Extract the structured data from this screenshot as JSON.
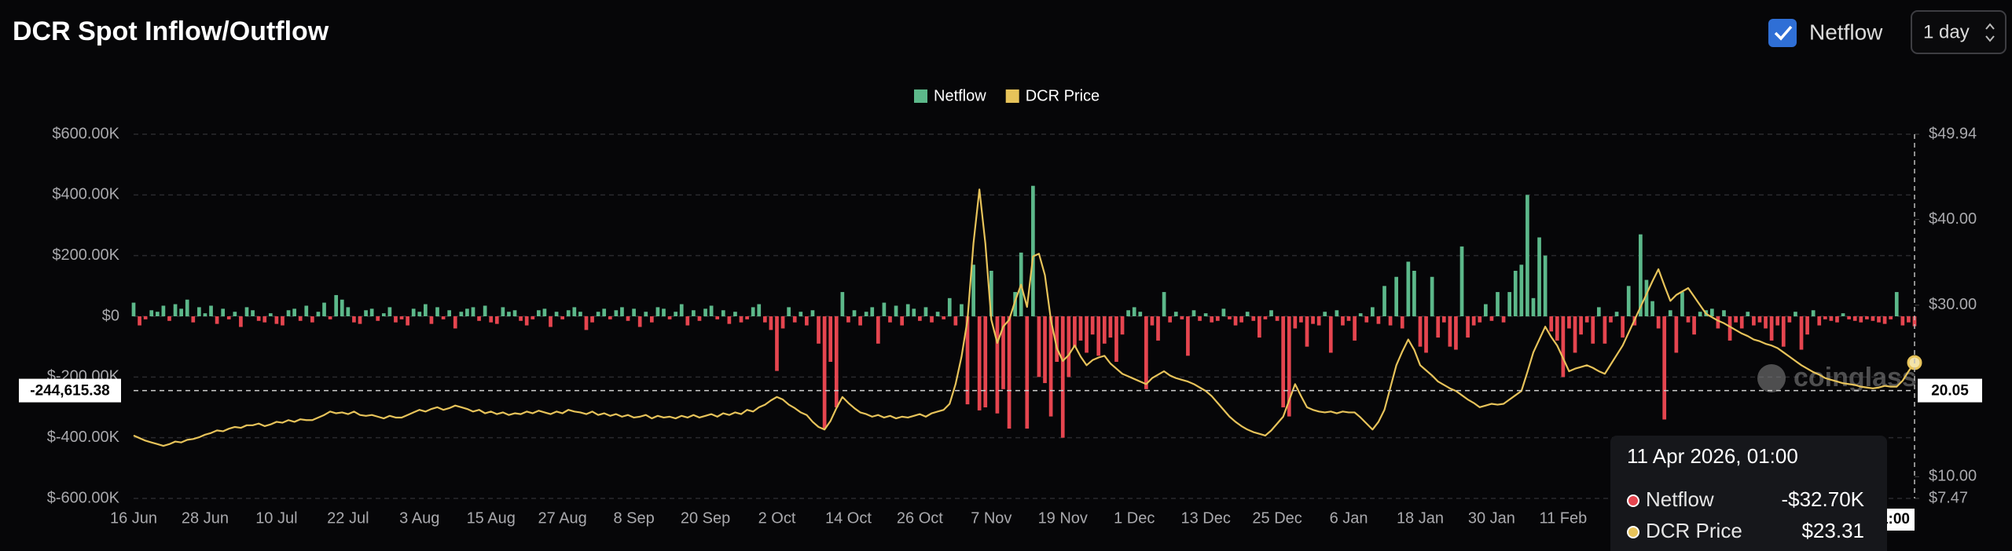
{
  "controls": {
    "checkbox_label": "Netflow",
    "interval": "1 day"
  },
  "chart_data": {
    "type": "bar",
    "title": "DCR Spot Inflow/Outflow",
    "watermark": "coinglass",
    "categories": [
      "16 Jun",
      null,
      null,
      null,
      null,
      null,
      null,
      null,
      null,
      null,
      null,
      null,
      "28 Jun",
      null,
      null,
      null,
      null,
      null,
      null,
      null,
      null,
      null,
      null,
      null,
      "10 Jul",
      null,
      null,
      null,
      null,
      null,
      null,
      null,
      null,
      null,
      null,
      null,
      "22 Jul",
      null,
      null,
      null,
      null,
      null,
      null,
      null,
      null,
      null,
      null,
      null,
      "3 Aug",
      null,
      null,
      null,
      null,
      null,
      null,
      null,
      null,
      null,
      null,
      null,
      "15 Aug",
      null,
      null,
      null,
      null,
      null,
      null,
      null,
      null,
      null,
      null,
      null,
      "27 Aug",
      null,
      null,
      null,
      null,
      null,
      null,
      null,
      null,
      null,
      null,
      null,
      "8 Sep",
      null,
      null,
      null,
      null,
      null,
      null,
      null,
      null,
      null,
      null,
      null,
      "20 Sep",
      null,
      null,
      null,
      null,
      null,
      null,
      null,
      null,
      null,
      null,
      null,
      "2 Oct",
      null,
      null,
      null,
      null,
      null,
      null,
      null,
      null,
      null,
      null,
      null,
      "14 Oct",
      null,
      null,
      null,
      null,
      null,
      null,
      null,
      null,
      null,
      null,
      null,
      "26 Oct",
      null,
      null,
      null,
      null,
      null,
      null,
      null,
      null,
      null,
      null,
      null,
      "7 Nov",
      null,
      null,
      null,
      null,
      null,
      null,
      null,
      null,
      null,
      null,
      null,
      "19 Nov",
      null,
      null,
      null,
      null,
      null,
      null,
      null,
      null,
      null,
      null,
      null,
      "1 Dec",
      null,
      null,
      null,
      null,
      null,
      null,
      null,
      null,
      null,
      null,
      null,
      "13 Dec",
      null,
      null,
      null,
      null,
      null,
      null,
      null,
      null,
      null,
      null,
      null,
      "25 Dec",
      null,
      null,
      null,
      null,
      null,
      null,
      null,
      null,
      null,
      null,
      null,
      "6 Jan",
      null,
      null,
      null,
      null,
      null,
      null,
      null,
      null,
      null,
      null,
      null,
      "18 Jan",
      null,
      null,
      null,
      null,
      null,
      null,
      null,
      null,
      null,
      null,
      null,
      "30 Jan",
      null,
      null,
      null,
      null,
      null,
      null,
      null,
      null,
      null,
      null,
      null,
      "11 Feb",
      null,
      null,
      null,
      null,
      null,
      null,
      null,
      null,
      null,
      null,
      null,
      null,
      null,
      null,
      null,
      null,
      null,
      null,
      null,
      null,
      null,
      null,
      null,
      null,
      null,
      null,
      null,
      null,
      null,
      null,
      null,
      null,
      null,
      null,
      null,
      null,
      null,
      null,
      null,
      null,
      null,
      null,
      null,
      null,
      null,
      null,
      null,
      null,
      null,
      null,
      null,
      null,
      null,
      null,
      null,
      null,
      null,
      null,
      null
    ],
    "series": [
      {
        "name": "Netflow",
        "color": "#5cb88a",
        "negative_color": "#e5454f",
        "values": [
          45000,
          -30000,
          -10000,
          20000,
          15000,
          35000,
          -15000,
          40000,
          25000,
          55000,
          -20000,
          30000,
          10000,
          35000,
          -25000,
          25000,
          -10000,
          15000,
          -35000,
          30000,
          20000,
          -15000,
          -20000,
          10000,
          -25000,
          -30000,
          20000,
          25000,
          -15000,
          35000,
          -20000,
          15000,
          45000,
          -10000,
          70000,
          55000,
          30000,
          -20000,
          -25000,
          20000,
          25000,
          -15000,
          10000,
          30000,
          -20000,
          -10000,
          -30000,
          25000,
          15000,
          40000,
          -25000,
          30000,
          -10000,
          20000,
          -40000,
          15000,
          25000,
          30000,
          -15000,
          35000,
          -20000,
          -25000,
          30000,
          15000,
          20000,
          -15000,
          -30000,
          -10000,
          20000,
          25000,
          -35000,
          15000,
          -10000,
          20000,
          30000,
          15000,
          -45000,
          -20000,
          15000,
          25000,
          -10000,
          20000,
          30000,
          -15000,
          25000,
          -35000,
          15000,
          -20000,
          30000,
          25000,
          -10000,
          15000,
          40000,
          -30000,
          20000,
          -15000,
          25000,
          35000,
          -10000,
          20000,
          -25000,
          15000,
          -20000,
          -10000,
          30000,
          40000,
          -20000,
          -45000,
          -180000,
          -40000,
          30000,
          -20000,
          15000,
          -30000,
          20000,
          -90000,
          -370000,
          -150000,
          -300000,
          80000,
          -20000,
          20000,
          -30000,
          15000,
          30000,
          -90000,
          45000,
          -20000,
          35000,
          -30000,
          40000,
          25000,
          -15000,
          30000,
          -20000,
          15000,
          -10000,
          60000,
          -30000,
          40000,
          -290000,
          170000,
          -310000,
          -300000,
          150000,
          -320000,
          -240000,
          -370000,
          80000,
          210000,
          -370000,
          430000,
          -200000,
          -220000,
          -330000,
          -150000,
          -400000,
          -200000,
          -100000,
          -80000,
          -120000,
          -60000,
          -130000,
          -90000,
          -70000,
          -150000,
          -60000,
          20000,
          30000,
          15000,
          -240000,
          -30000,
          -80000,
          80000,
          -20000,
          15000,
          -10000,
          -130000,
          20000,
          -15000,
          10000,
          -20000,
          -15000,
          25000,
          -10000,
          -30000,
          -20000,
          15000,
          -15000,
          -70000,
          -10000,
          20000,
          -15000,
          -300000,
          -330000,
          -40000,
          -20000,
          -100000,
          -25000,
          -30000,
          15000,
          -120000,
          20000,
          -30000,
          -15000,
          -80000,
          10000,
          -20000,
          30000,
          -25000,
          100000,
          -30000,
          130000,
          -40000,
          180000,
          150000,
          -100000,
          -120000,
          130000,
          -70000,
          -20000,
          -100000,
          -110000,
          230000,
          -70000,
          -30000,
          -20000,
          40000,
          -15000,
          80000,
          -20000,
          80000,
          150000,
          170000,
          400000,
          60000,
          260000,
          200000,
          -50000,
          -80000,
          -200000,
          -40000,
          -120000,
          -60000,
          -20000,
          -90000,
          30000,
          -90000,
          -20000,
          15000,
          -70000,
          100000,
          -30000,
          270000,
          120000,
          50000,
          -40000,
          -340000,
          20000,
          -120000,
          80000,
          -20000,
          -60000,
          15000,
          20000,
          25000,
          -40000,
          20000,
          -80000,
          -20000,
          -40000,
          15000,
          -30000,
          -20000,
          -40000,
          -80000,
          -30000,
          -100000,
          -20000,
          15000,
          -110000,
          -60000,
          20000,
          -30000,
          -10000,
          -15000,
          -20000,
          10000,
          -10000,
          -15000,
          -20000,
          -10000,
          -15000,
          -20000,
          -25000,
          -10000,
          80000,
          -30000,
          -20000,
          -32700
        ]
      },
      {
        "name": "DCR Price",
        "color": "#e7c35a",
        "type": "line",
        "axis": "y2",
        "values": [
          14.8,
          14.5,
          14.2,
          14.0,
          13.8,
          13.6,
          13.8,
          14.1,
          14.0,
          14.3,
          14.4,
          14.6,
          14.9,
          15.1,
          15.4,
          15.3,
          15.6,
          15.8,
          15.7,
          16.0,
          16.0,
          16.2,
          15.9,
          16.1,
          16.4,
          16.3,
          16.6,
          16.4,
          16.7,
          16.6,
          16.6,
          16.9,
          17.2,
          17.6,
          17.4,
          17.5,
          17.3,
          17.6,
          17.2,
          17.1,
          17.2,
          17.0,
          16.8,
          17.1,
          16.9,
          16.9,
          17.2,
          17.5,
          17.8,
          17.6,
          17.9,
          18.1,
          17.8,
          18.0,
          18.3,
          18.1,
          17.9,
          17.6,
          17.8,
          17.4,
          17.6,
          17.3,
          17.5,
          17.2,
          17.4,
          17.3,
          17.6,
          17.4,
          17.7,
          17.5,
          17.3,
          17.6,
          17.4,
          17.8,
          17.6,
          17.5,
          17.3,
          17.6,
          17.2,
          17.4,
          17.1,
          17.3,
          17.0,
          17.2,
          16.9,
          17.0,
          17.2,
          16.8,
          17.1,
          16.9,
          17.0,
          16.8,
          17.1,
          16.9,
          17.2,
          16.9,
          17.1,
          17.3,
          17.0,
          17.4,
          17.2,
          17.5,
          17.3,
          17.8,
          17.6,
          18.1,
          18.4,
          18.9,
          19.3,
          19.0,
          18.4,
          18.0,
          17.5,
          17.2,
          16.4,
          15.8,
          15.5,
          16.5,
          18.0,
          19.3,
          18.6,
          18.0,
          17.5,
          17.3,
          17.0,
          17.2,
          16.9,
          17.1,
          16.8,
          17.0,
          16.9,
          17.1,
          17.3,
          17.0,
          17.4,
          17.6,
          17.8,
          18.5,
          20.8,
          24.0,
          28.3,
          37.2,
          43.5,
          37.2,
          28.3,
          25.6,
          27.5,
          28.3,
          30.5,
          32.4,
          29.8,
          35.7,
          36.0,
          33.5,
          28.3,
          25.0,
          23.5,
          24.2,
          25.3,
          24.0,
          23.0,
          23.6,
          23.9,
          24.1,
          23.2,
          22.6,
          22.0,
          21.7,
          21.4,
          21.1,
          20.8,
          21.5,
          21.9,
          22.3,
          21.8,
          21.5,
          21.3,
          21.1,
          20.8,
          20.4,
          20.0,
          19.4,
          18.6,
          17.8,
          17.0,
          16.4,
          15.9,
          15.5,
          15.2,
          15.0,
          14.8,
          15.4,
          16.2,
          17.0,
          18.9,
          20.8,
          19.4,
          18.1,
          17.8,
          17.6,
          17.5,
          17.6,
          17.4,
          17.6,
          17.5,
          17.5,
          16.9,
          16.2,
          15.5,
          16.4,
          17.8,
          20.4,
          23.0,
          24.6,
          26.0,
          24.8,
          23.0,
          22.4,
          21.8,
          21.1,
          20.7,
          20.3,
          20.0,
          19.5,
          19.0,
          18.6,
          18.1,
          18.3,
          18.5,
          18.4,
          18.5,
          19.0,
          19.5,
          20.0,
          22.2,
          24.5,
          26.0,
          27.5,
          26.3,
          25.3,
          23.8,
          22.3,
          22.6,
          22.8,
          23.0,
          22.7,
          22.3,
          22.0,
          23.1,
          24.2,
          25.3,
          26.8,
          28.3,
          29.8,
          31.3,
          32.8,
          34.2,
          32.3,
          30.5,
          31.2,
          31.6,
          32.0,
          31.0,
          30.0,
          29.0,
          28.6,
          28.2,
          27.9,
          27.5,
          27.1,
          26.7,
          26.4,
          26.0,
          25.8,
          25.5,
          25.3,
          25.0,
          24.5,
          24.0,
          23.5,
          23.0,
          22.6,
          22.2,
          21.9,
          21.5,
          21.3,
          21.1,
          20.9,
          20.8,
          20.7,
          20.5,
          20.4,
          20.3,
          20.4,
          20.6,
          20.5,
          20.5,
          21.2,
          22.3,
          23.31
        ]
      }
    ],
    "ylim": [
      -600000,
      600000
    ],
    "yticks": [
      {
        "value": 600000,
        "label": "$600.00K"
      },
      {
        "value": 400000,
        "label": "$400.00K"
      },
      {
        "value": 200000,
        "label": "$200.00K"
      },
      {
        "value": 0,
        "label": "$0"
      },
      {
        "value": -200000,
        "label": "$-200.00K"
      },
      {
        "value": -400000,
        "label": "$-400.00K"
      },
      {
        "value": -600000,
        "label": "$-600.00K"
      }
    ],
    "y2lim": [
      7.47,
      49.94
    ],
    "y2ticks": [
      {
        "value": 49.94,
        "label": "$49.94"
      },
      {
        "value": 40,
        "label": "$40.00"
      },
      {
        "value": 30,
        "label": "$30.00"
      },
      {
        "value": 10,
        "label": "$10.00"
      },
      {
        "value": 7.47,
        "label": "$7.47"
      }
    ],
    "grid": true,
    "legend": "top",
    "crosshair": {
      "y": {
        "value": -244615.38,
        "label": "-244,615.38"
      },
      "y2": 20.05
    },
    "tooltip": {
      "date": "11 Apr 2026, 01:00",
      "value_labels": [
        "-$32.70K",
        "$23.31"
      ]
    }
  }
}
